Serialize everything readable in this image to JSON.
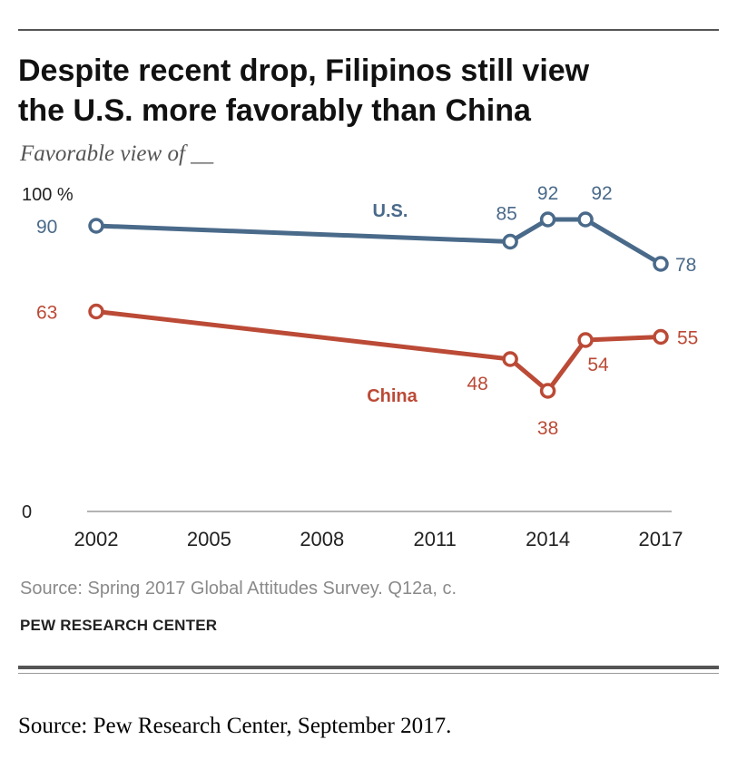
{
  "header": {
    "title": "Despite recent drop, Filipinos still view\nthe U.S. more favorably than China",
    "subtitle": "Favorable view of __"
  },
  "footer": {
    "source": "Source: Spring 2017 Global Attitudes Survey. Q12a, c.",
    "organization": "PEW RESEARCH CENTER",
    "caption": "Source:  Pew Research Center, September 2017."
  },
  "chart_data": {
    "type": "line",
    "title": "Despite recent drop, Filipinos still view the U.S. more favorably than China",
    "subtitle": "Favorable view of __",
    "xlabel": "",
    "ylabel": "",
    "xlim": [
      2002,
      2017
    ],
    "ylim": [
      0,
      100
    ],
    "x_ticks": [
      "2002",
      "2005",
      "2008",
      "2011",
      "2014",
      "2017"
    ],
    "y_ticks": [
      {
        "value": 100,
        "label": "100 %"
      },
      {
        "value": 0,
        "label": "0"
      }
    ],
    "grid": false,
    "series": [
      {
        "name": "U.S.",
        "color": "#4a6a8a",
        "points": [
          {
            "x": 2002,
            "y": 90
          },
          {
            "x": 2013,
            "y": 85
          },
          {
            "x": 2014,
            "y": 92
          },
          {
            "x": 2015,
            "y": 92
          },
          {
            "x": 2017,
            "y": 78
          }
        ]
      },
      {
        "name": "China",
        "color": "#bb4a36",
        "points": [
          {
            "x": 2002,
            "y": 63
          },
          {
            "x": 2013,
            "y": 48
          },
          {
            "x": 2014,
            "y": 38
          },
          {
            "x": 2015,
            "y": 54
          },
          {
            "x": 2017,
            "y": 55
          }
        ]
      }
    ]
  }
}
